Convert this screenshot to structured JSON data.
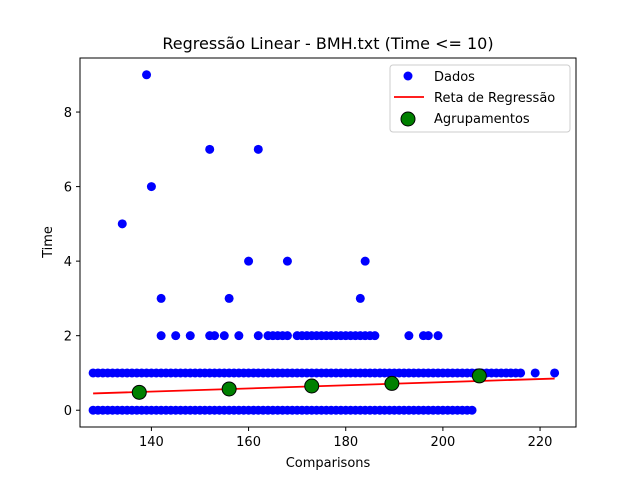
{
  "chart_data": {
    "type": "scatter",
    "title": "Regressão Linear - BMH.txt (Time <= 10)",
    "xlabel": "Comparisons",
    "ylabel": "Time",
    "xlim": [
      125.3,
      227.4
    ],
    "ylim": [
      -0.45,
      9.45
    ],
    "xticks": [
      140,
      160,
      180,
      200,
      220
    ],
    "yticks": [
      0,
      2,
      4,
      6,
      8
    ],
    "grid": false,
    "legend_position": "top-right",
    "series": [
      {
        "name": "Dados",
        "kind": "scatter",
        "color": "#0000ff",
        "points": [
          [
            139,
            9
          ],
          [
            152,
            7
          ],
          [
            162,
            7
          ],
          [
            140,
            6
          ],
          [
            134,
            5
          ],
          [
            160,
            4
          ],
          [
            168,
            4
          ],
          [
            184,
            4
          ],
          [
            142,
            3
          ],
          [
            156,
            3
          ],
          [
            183,
            3
          ],
          [
            142,
            2
          ],
          [
            145,
            2
          ],
          [
            148,
            2
          ],
          [
            152,
            2
          ],
          [
            153,
            2
          ],
          [
            155,
            2
          ],
          [
            158,
            2
          ],
          [
            162,
            2
          ],
          [
            164,
            2
          ],
          [
            165,
            2
          ],
          [
            166,
            2
          ],
          [
            167,
            2
          ],
          [
            168,
            2
          ],
          [
            170,
            2
          ],
          [
            171,
            2
          ],
          [
            172,
            2
          ],
          [
            173,
            2
          ],
          [
            174,
            2
          ],
          [
            175,
            2
          ],
          [
            176,
            2
          ],
          [
            177,
            2
          ],
          [
            178,
            2
          ],
          [
            179,
            2
          ],
          [
            180,
            2
          ],
          [
            181,
            2
          ],
          [
            182,
            2
          ],
          [
            183,
            2
          ],
          [
            184,
            2
          ],
          [
            185,
            2
          ],
          [
            186,
            2
          ],
          [
            193,
            2
          ],
          [
            196,
            2
          ],
          [
            197,
            2
          ],
          [
            199,
            2
          ],
          [
            219,
            1
          ],
          [
            223,
            1
          ]
        ],
        "bands": [
          {
            "y": 1,
            "x_from": 128,
            "x_to": 216
          },
          {
            "y": 0,
            "x_from": 128,
            "x_to": 206
          }
        ]
      },
      {
        "name": "Reta de Regressão",
        "kind": "line",
        "color": "#ff0000",
        "x": [
          128,
          223
        ],
        "y": [
          0.45,
          0.85
        ]
      },
      {
        "name": "Agrupamentos",
        "kind": "scatter",
        "color": "#008000",
        "edge_color": "#000000",
        "points": [
          [
            137.5,
            0.48
          ],
          [
            156,
            0.57
          ],
          [
            173,
            0.65
          ],
          [
            189.5,
            0.72
          ],
          [
            207.5,
            0.92
          ]
        ]
      }
    ]
  }
}
